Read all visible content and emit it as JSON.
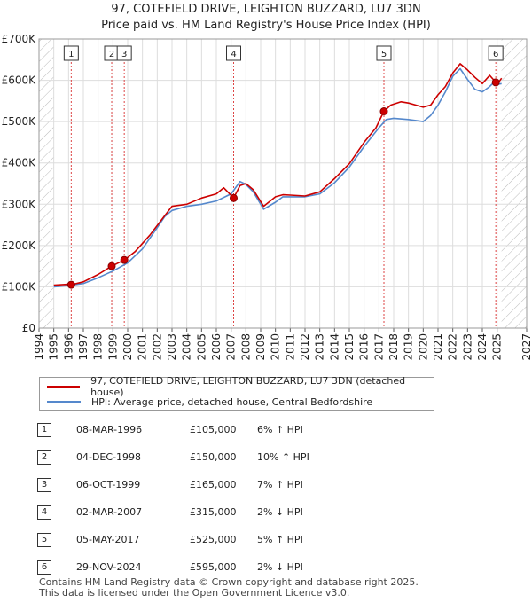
{
  "title": {
    "line1": "97, COTEFIELD DRIVE, LEIGHTON BUZZARD, LU7 3DN",
    "line2": "Price paid vs. HM Land Registry's House Price Index (HPI)"
  },
  "colors": {
    "property": "#cc0000",
    "hpi": "#5588cc",
    "marker_line": "#dd4444",
    "hatch": "#bbbbbb"
  },
  "chart_data": {
    "type": "line",
    "title": "97, COTEFIELD DRIVE, LEIGHTON BUZZARD, LU7 3DN",
    "subtitle": "Price paid vs. HM Land Registry's House Price Index (HPI)",
    "xlim": [
      1994,
      2027
    ],
    "ylim": [
      0,
      700000
    ],
    "data_range": [
      1995.0,
      2025.3
    ],
    "y_ticks": [
      {
        "value": 0,
        "label": "£0"
      },
      {
        "value": 100000,
        "label": "£100K"
      },
      {
        "value": 200000,
        "label": "£200K"
      },
      {
        "value": 300000,
        "label": "£300K"
      },
      {
        "value": 400000,
        "label": "£400K"
      },
      {
        "value": 500000,
        "label": "£500K"
      },
      {
        "value": 600000,
        "label": "£600K"
      },
      {
        "value": 700000,
        "label": "£700K"
      }
    ],
    "x_ticks": [
      "1994",
      "1995",
      "1996",
      "1997",
      "1998",
      "1999",
      "2000",
      "2001",
      "2002",
      "2003",
      "2004",
      "2005",
      "2006",
      "2007",
      "2008",
      "2009",
      "2010",
      "2011",
      "2012",
      "2013",
      "2014",
      "2015",
      "2016",
      "2017",
      "2018",
      "2019",
      "2020",
      "2021",
      "2022",
      "2023",
      "2024",
      "2025",
      "2027"
    ],
    "grid": true,
    "legend_position": "below",
    "series": [
      {
        "name": "97, COTEFIELD DRIVE, LEIGHTON BUZZARD, LU7 3DN (detached house)",
        "x": [
          1995.0,
          1996.0,
          1996.18,
          1997.0,
          1998.0,
          1998.92,
          1999.77,
          2000.5,
          2001.5,
          2002.5,
          2003.0,
          2004.0,
          2005.0,
          2006.0,
          2006.5,
          2007.17,
          2007.6,
          2008.0,
          2008.5,
          2009.2,
          2010.0,
          2010.5,
          2011.0,
          2012.0,
          2013.0,
          2014.0,
          2015.0,
          2016.0,
          2016.8,
          2017.34,
          2017.8,
          2018.5,
          2019.0,
          2019.5,
          2020.0,
          2020.5,
          2021.0,
          2021.5,
          2022.0,
          2022.5,
          2023.0,
          2023.5,
          2024.0,
          2024.5,
          2024.91,
          2025.0,
          2025.3
        ],
        "y": [
          104000,
          106000,
          105000,
          112000,
          130000,
          150000,
          165000,
          185000,
          225000,
          272000,
          295000,
          300000,
          315000,
          325000,
          340000,
          315000,
          345000,
          350000,
          335000,
          295000,
          318000,
          323000,
          322000,
          320000,
          330000,
          362000,
          398000,
          450000,
          485000,
          525000,
          540000,
          548000,
          545000,
          540000,
          535000,
          540000,
          565000,
          585000,
          618000,
          640000,
          625000,
          607000,
          592000,
          612000,
          595000,
          590000,
          605000
        ]
      },
      {
        "name": "HPI: Average price, detached house, Central Bedfordshire",
        "x": [
          1995.0,
          1996.0,
          1997.0,
          1998.0,
          1999.0,
          2000.0,
          2001.0,
          2002.0,
          2002.5,
          2003.0,
          2004.0,
          2005.0,
          2006.0,
          2007.0,
          2007.6,
          2008.0,
          2008.5,
          2009.2,
          2010.0,
          2010.5,
          2011.0,
          2012.0,
          2013.0,
          2014.0,
          2015.0,
          2016.0,
          2017.0,
          2017.5,
          2018.0,
          2019.0,
          2020.0,
          2020.5,
          2021.0,
          2021.5,
          2022.0,
          2022.5,
          2023.0,
          2023.5,
          2024.0,
          2024.5,
          2024.91,
          2025.0,
          2025.3
        ],
        "y": [
          100000,
          103000,
          108000,
          122000,
          138000,
          158000,
          192000,
          243000,
          270000,
          285000,
          295000,
          300000,
          308000,
          325000,
          355000,
          348000,
          330000,
          288000,
          305000,
          318000,
          318000,
          318000,
          325000,
          352000,
          390000,
          440000,
          485000,
          505000,
          508000,
          505000,
          500000,
          515000,
          540000,
          572000,
          610000,
          628000,
          602000,
          578000,
          572000,
          585000,
          600000,
          590000,
          592000
        ]
      }
    ],
    "sales": [
      {
        "num": "1",
        "x": 1996.18,
        "y": 105000
      },
      {
        "num": "2",
        "x": 1998.92,
        "y": 150000
      },
      {
        "num": "3",
        "x": 1999.77,
        "y": 165000
      },
      {
        "num": "4",
        "x": 2007.17,
        "y": 315000
      },
      {
        "num": "5",
        "x": 2017.34,
        "y": 525000
      },
      {
        "num": "6",
        "x": 2024.91,
        "y": 595000
      }
    ]
  },
  "legend": {
    "property": "97, COTEFIELD DRIVE, LEIGHTON BUZZARD, LU7 3DN (detached house)",
    "hpi": "HPI: Average price, detached house, Central Bedfordshire"
  },
  "sales_table": [
    {
      "num": "1",
      "date": "08-MAR-1996",
      "price": "£105,000",
      "hpi": "6% ↑ HPI"
    },
    {
      "num": "2",
      "date": "04-DEC-1998",
      "price": "£150,000",
      "hpi": "10% ↑ HPI"
    },
    {
      "num": "3",
      "date": "06-OCT-1999",
      "price": "£165,000",
      "hpi": "7% ↑ HPI"
    },
    {
      "num": "4",
      "date": "02-MAR-2007",
      "price": "£315,000",
      "hpi": "2% ↓ HPI"
    },
    {
      "num": "5",
      "date": "05-MAY-2017",
      "price": "£525,000",
      "hpi": "5% ↑ HPI"
    },
    {
      "num": "6",
      "date": "29-NOV-2024",
      "price": "£595,000",
      "hpi": "2% ↓ HPI"
    }
  ],
  "footer": {
    "line1": "Contains HM Land Registry data © Crown copyright and database right 2025.",
    "line2": "This data is licensed under the Open Government Licence v3.0."
  }
}
